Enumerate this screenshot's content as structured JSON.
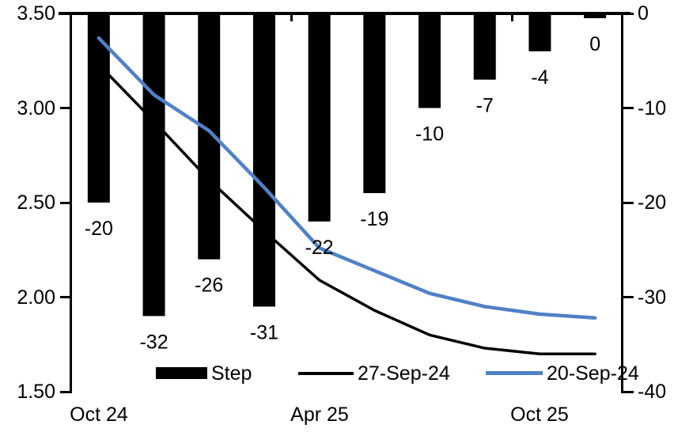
{
  "chart_data": {
    "type": "bar+line combo",
    "title": "",
    "n_slots": 10,
    "bar_series": {
      "name": "Step",
      "axis": "right",
      "color": "#000000",
      "values": [
        -20,
        -32,
        -26,
        -31,
        -22,
        -19,
        -10,
        -7,
        -4,
        0
      ],
      "data_labels": [
        "-20",
        "-32",
        "-26",
        "-31",
        "-22",
        "-19",
        "-10",
        "-7",
        "-4",
        "0"
      ]
    },
    "line_series": [
      {
        "name": "27-Sep-24",
        "axis": "left",
        "color": "#000000",
        "stroke_width": 3.5,
        "values": [
          3.23,
          2.93,
          2.62,
          2.35,
          2.09,
          1.93,
          1.8,
          1.73,
          1.7,
          1.7
        ]
      },
      {
        "name": "20-Sep-24",
        "axis": "left",
        "color": "#4f81c7",
        "stroke_width": 4.5,
        "values": [
          3.37,
          3.07,
          2.88,
          2.58,
          2.26,
          2.14,
          2.02,
          1.95,
          1.91,
          1.89
        ]
      }
    ],
    "left_axis": {
      "min": 1.5,
      "max": 3.5,
      "ticks": [
        "3.50",
        "3.00",
        "2.50",
        "2.00",
        "1.50"
      ]
    },
    "right_axis": {
      "min": -40,
      "max": 0,
      "ticks": [
        "0",
        "-10",
        "-20",
        "-30",
        "-40"
      ]
    },
    "x_axis": {
      "labels": [
        {
          "text": "Oct 24",
          "slot": 0
        },
        {
          "text": "Apr 25",
          "slot": 4
        },
        {
          "text": "Oct 25",
          "slot": 8
        }
      ],
      "minor_tick_slots": [
        4,
        8
      ]
    },
    "legend": [
      {
        "label": "Step",
        "type": "bar",
        "color": "#000000"
      },
      {
        "label": "27-Sep-24",
        "type": "line",
        "color": "#000000"
      },
      {
        "label": "20-Sep-24",
        "type": "line",
        "color": "#4f81c7"
      }
    ],
    "grid": "off",
    "legend_position": "bottom-inside"
  }
}
